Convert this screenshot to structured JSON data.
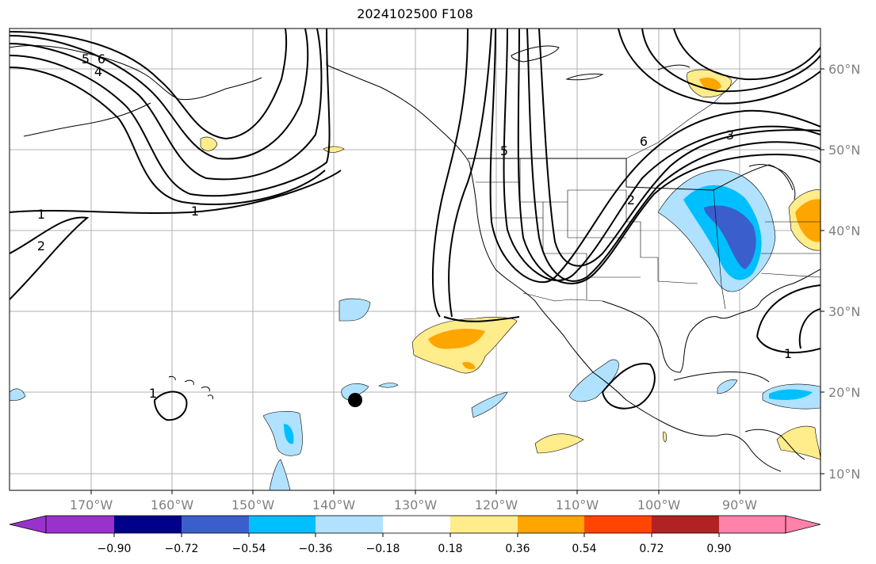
{
  "title": "2024102500 F108",
  "map": {
    "lon_labels": [
      "170°W",
      "160°W",
      "150°W",
      "140°W",
      "130°W",
      "120°W",
      "110°W",
      "100°W",
      "90°W"
    ],
    "lat_labels": [
      "60°N",
      "50°N",
      "40°N",
      "30°N",
      "20°N",
      "10°N"
    ],
    "contour_labels": [
      "5",
      "6",
      "4",
      "1",
      "2",
      "1",
      "1",
      "5",
      "6",
      "3",
      "2",
      "1"
    ],
    "colors": {
      "label_gray": "#808080",
      "grid": "#b0b0b0",
      "contour": "#000000",
      "marker": "#000000"
    }
  },
  "colorbar": {
    "colors": [
      "#9932cc",
      "#00008b",
      "#3a5fcd",
      "#00bfff",
      "#b0e2ff",
      "#ffffff",
      "#ffec8b",
      "#ffa500",
      "#ff4500",
      "#b22222",
      "#ff82ab"
    ],
    "tick_labels": [
      "−0.90",
      "−0.72",
      "−0.54",
      "−0.36",
      "−0.18",
      "0.18",
      "0.36",
      "0.54",
      "0.72",
      "0.90"
    ]
  }
}
